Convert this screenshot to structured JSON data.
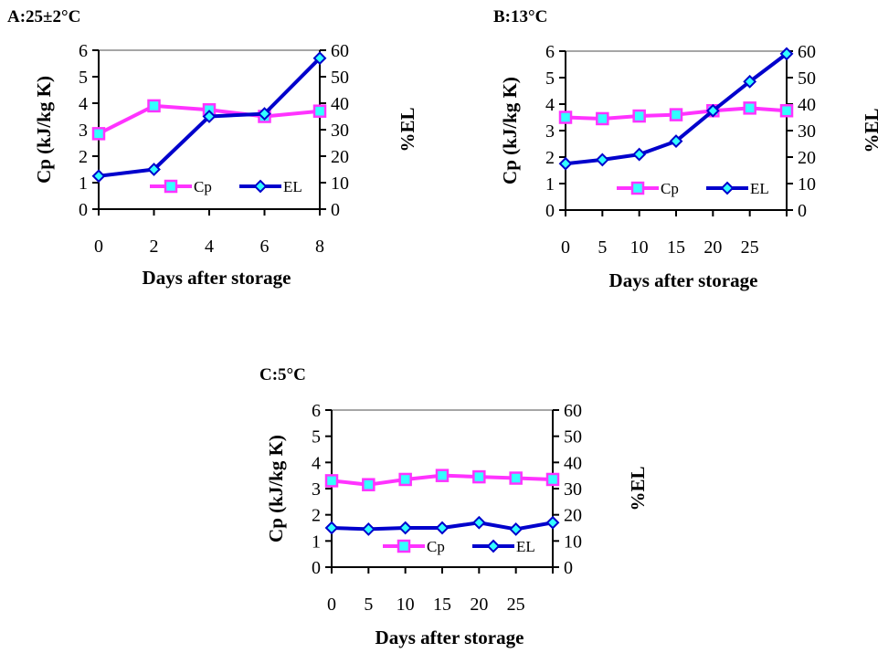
{
  "chart_data": [
    {
      "type": "line",
      "title": "A:25±2°C",
      "xlabel": "Days after storage",
      "ylabel": "Cp (kJ/kg K)",
      "y2label": "%EL",
      "x": [
        0,
        2,
        4,
        6,
        8
      ],
      "xticks": [
        "0",
        "2",
        "4",
        "6",
        "8"
      ],
      "ylim": [
        0,
        6
      ],
      "y2lim": [
        0,
        60
      ],
      "yticks": [
        "0",
        "1",
        "2",
        "3",
        "4",
        "5",
        "6"
      ],
      "y2ticks": [
        "0",
        "10",
        "20",
        "30",
        "40",
        "50",
        "60"
      ],
      "grid": "top border line only",
      "legend": "inside, lower-middle",
      "series": [
        {
          "name": "Cp",
          "axis": "left",
          "marker": "square",
          "color": "#ff33ff",
          "marker_fill": "#33ffff",
          "values": [
            2.85,
            3.9,
            3.75,
            3.5,
            3.7
          ]
        },
        {
          "name": "EL",
          "axis": "right",
          "marker": "diamond",
          "color": "#0000cc",
          "marker_fill": "#33ffff",
          "values": [
            12.5,
            15,
            35,
            36,
            57
          ]
        }
      ]
    },
    {
      "type": "line",
      "title": "B:13°C",
      "xlabel": "Days after storage",
      "ylabel": "Cp (kJ/kg K)",
      "y2label": "%EL",
      "x": [
        0,
        5,
        10,
        15,
        20,
        25,
        30
      ],
      "xticks": [
        "0",
        "5",
        "10",
        "15",
        "20",
        "25"
      ],
      "ylim": [
        0,
        6
      ],
      "y2lim": [
        0,
        60
      ],
      "yticks": [
        "0",
        "1",
        "2",
        "3",
        "4",
        "5",
        "6"
      ],
      "y2ticks": [
        "0",
        "10",
        "20",
        "30",
        "40",
        "50",
        "60"
      ],
      "grid": "top border line only",
      "legend": "inside, lower-middle",
      "series": [
        {
          "name": "Cp",
          "axis": "left",
          "marker": "square",
          "color": "#ff33ff",
          "marker_fill": "#33ffff",
          "values": [
            3.5,
            3.45,
            3.55,
            3.6,
            3.75,
            3.85,
            3.75
          ]
        },
        {
          "name": "EL",
          "axis": "right",
          "marker": "diamond",
          "color": "#0000cc",
          "marker_fill": "#33ffff",
          "values": [
            17.5,
            19,
            21,
            26,
            37.5,
            48.5,
            59
          ]
        }
      ]
    },
    {
      "type": "line",
      "title": "C:5°C",
      "xlabel": "Days after storage",
      "ylabel": "Cp (kJ/kg K)",
      "y2label": "%EL",
      "x": [
        0,
        5,
        10,
        15,
        20,
        25,
        30
      ],
      "xticks": [
        "0",
        "5",
        "10",
        "15",
        "20",
        "25"
      ],
      "ylim": [
        0,
        6
      ],
      "y2lim": [
        0,
        60
      ],
      "yticks": [
        "0",
        "1",
        "2",
        "3",
        "4",
        "5",
        "6"
      ],
      "y2ticks": [
        "0",
        "10",
        "20",
        "30",
        "40",
        "50",
        "60"
      ],
      "grid": "top border line only",
      "legend": "inside, lower-middle",
      "series": [
        {
          "name": "Cp",
          "axis": "left",
          "marker": "square",
          "color": "#ff33ff",
          "marker_fill": "#33ffff",
          "values": [
            3.3,
            3.15,
            3.35,
            3.5,
            3.45,
            3.4,
            3.35
          ]
        },
        {
          "name": "EL",
          "axis": "right",
          "marker": "diamond",
          "color": "#0000cc",
          "marker_fill": "#33ffff",
          "values": [
            15,
            14.5,
            15,
            15,
            17,
            14.5,
            17
          ]
        }
      ]
    }
  ]
}
